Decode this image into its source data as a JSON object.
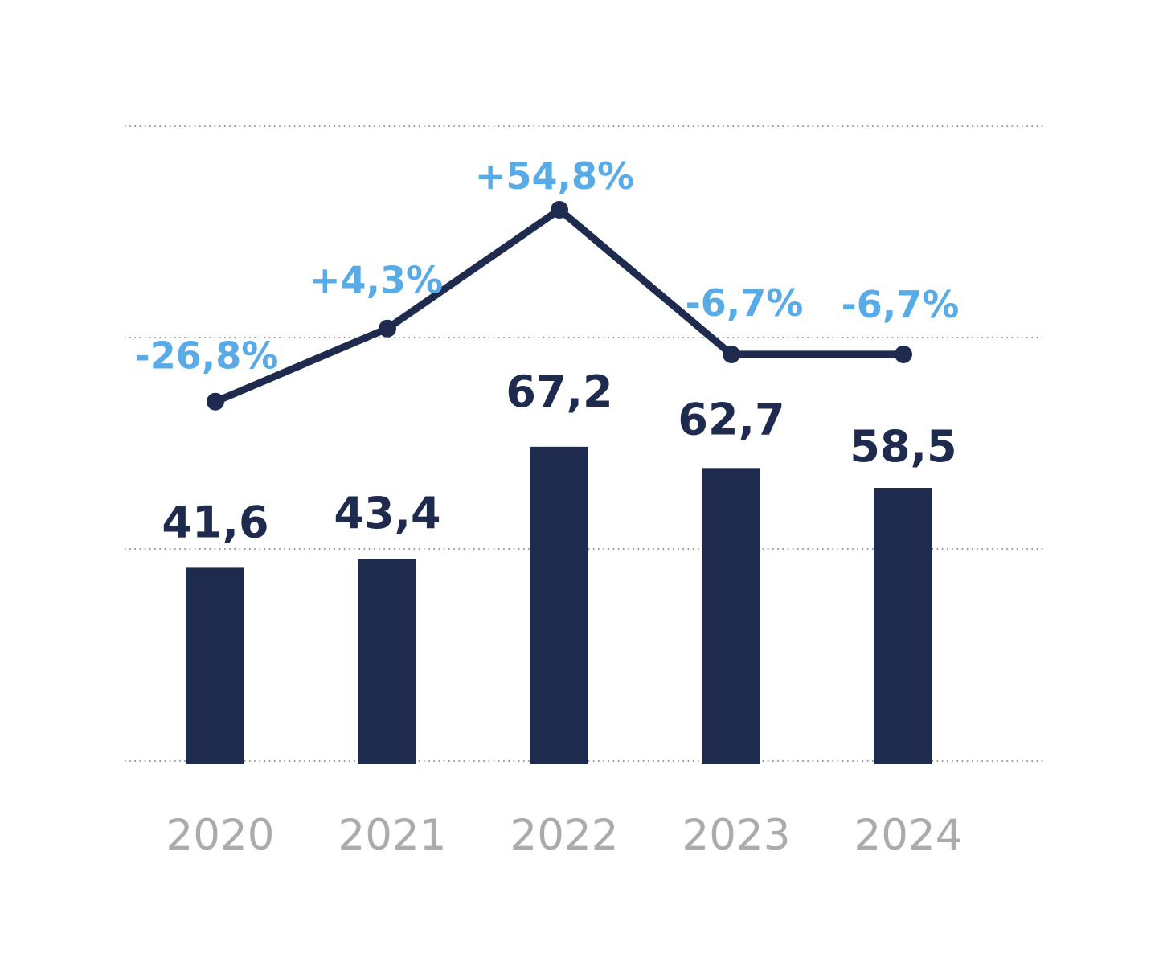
{
  "chart_data": {
    "type": "bar",
    "subtype": "bar-with-line-overlay",
    "title": "",
    "xlabel": "",
    "ylabel": "",
    "categories": [
      "2020",
      "2021",
      "2022",
      "2023",
      "2024"
    ],
    "series": [
      {
        "name": "annual-value",
        "type": "bar",
        "values": [
          41.6,
          43.4,
          67.2,
          62.7,
          58.5
        ],
        "labels": [
          "41,6",
          "43,4",
          "67,2",
          "62,7",
          "58,5"
        ],
        "color": "#1e2b4e"
      },
      {
        "name": "yoy-change-percent",
        "type": "line",
        "values": [
          -26.8,
          4.3,
          54.8,
          -6.7,
          -6.7
        ],
        "labels": [
          "-26,8%",
          "+4,3%",
          "+54,8%",
          "-6,7%",
          "-6,7%"
        ],
        "line_color": "#1e2b4e",
        "marker_color": "#1e2b4e",
        "label_color": "#59abe8"
      }
    ],
    "layout_hints": {
      "grid": "horizontal-dotted",
      "gridline_count": 4,
      "legend": "none",
      "background": "#ffffff",
      "x_tick_color": "#ababab",
      "bar_label_color": "#1e2b4e"
    }
  }
}
